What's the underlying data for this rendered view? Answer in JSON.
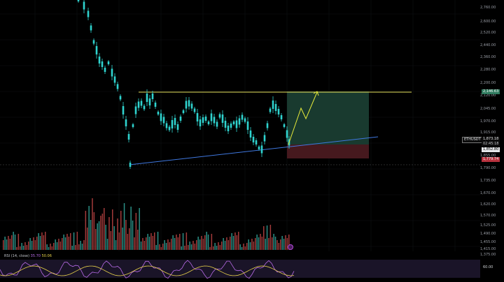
{
  "price_axis": {
    "labels": [
      "2,760.00",
      "2,600.00",
      "2,520.00",
      "2,440.00",
      "2,360.00",
      "2,280.00",
      "2,200.00",
      "2,120.00",
      "2,045.00",
      "1,970.00",
      "1,915.00",
      "1,855.00",
      "1,790.00",
      "1,735.00"
    ]
  },
  "volume_axis": {
    "labels": [
      "1,670.00",
      "1,620.00",
      "1,570.00",
      "1,525.00",
      "1,490.00",
      "1,455.00",
      "1,415.00",
      "1,375.00"
    ]
  },
  "tags": {
    "take_profit": "2,146.63",
    "symbol": "ETHUSDT",
    "last_price": "1,873.18",
    "countdown": "02:45:18",
    "entry": "1,852.80",
    "stop_loss": "1,779.74"
  },
  "rsi": {
    "label": "RSI (14, close)",
    "value_1": "35.70",
    "value_2": "50.06",
    "level": "60.00"
  },
  "colors": {
    "candle": "#2fd3cf",
    "resistance": "#e6e05a",
    "support": "#3f78e0",
    "profit_zone": "#1a3d31",
    "loss_zone": "#4a1a20",
    "projection": "#e6ea3a",
    "rsi_line_1": "#b96be8",
    "rsi_line_2": "#e8d24a"
  }
}
